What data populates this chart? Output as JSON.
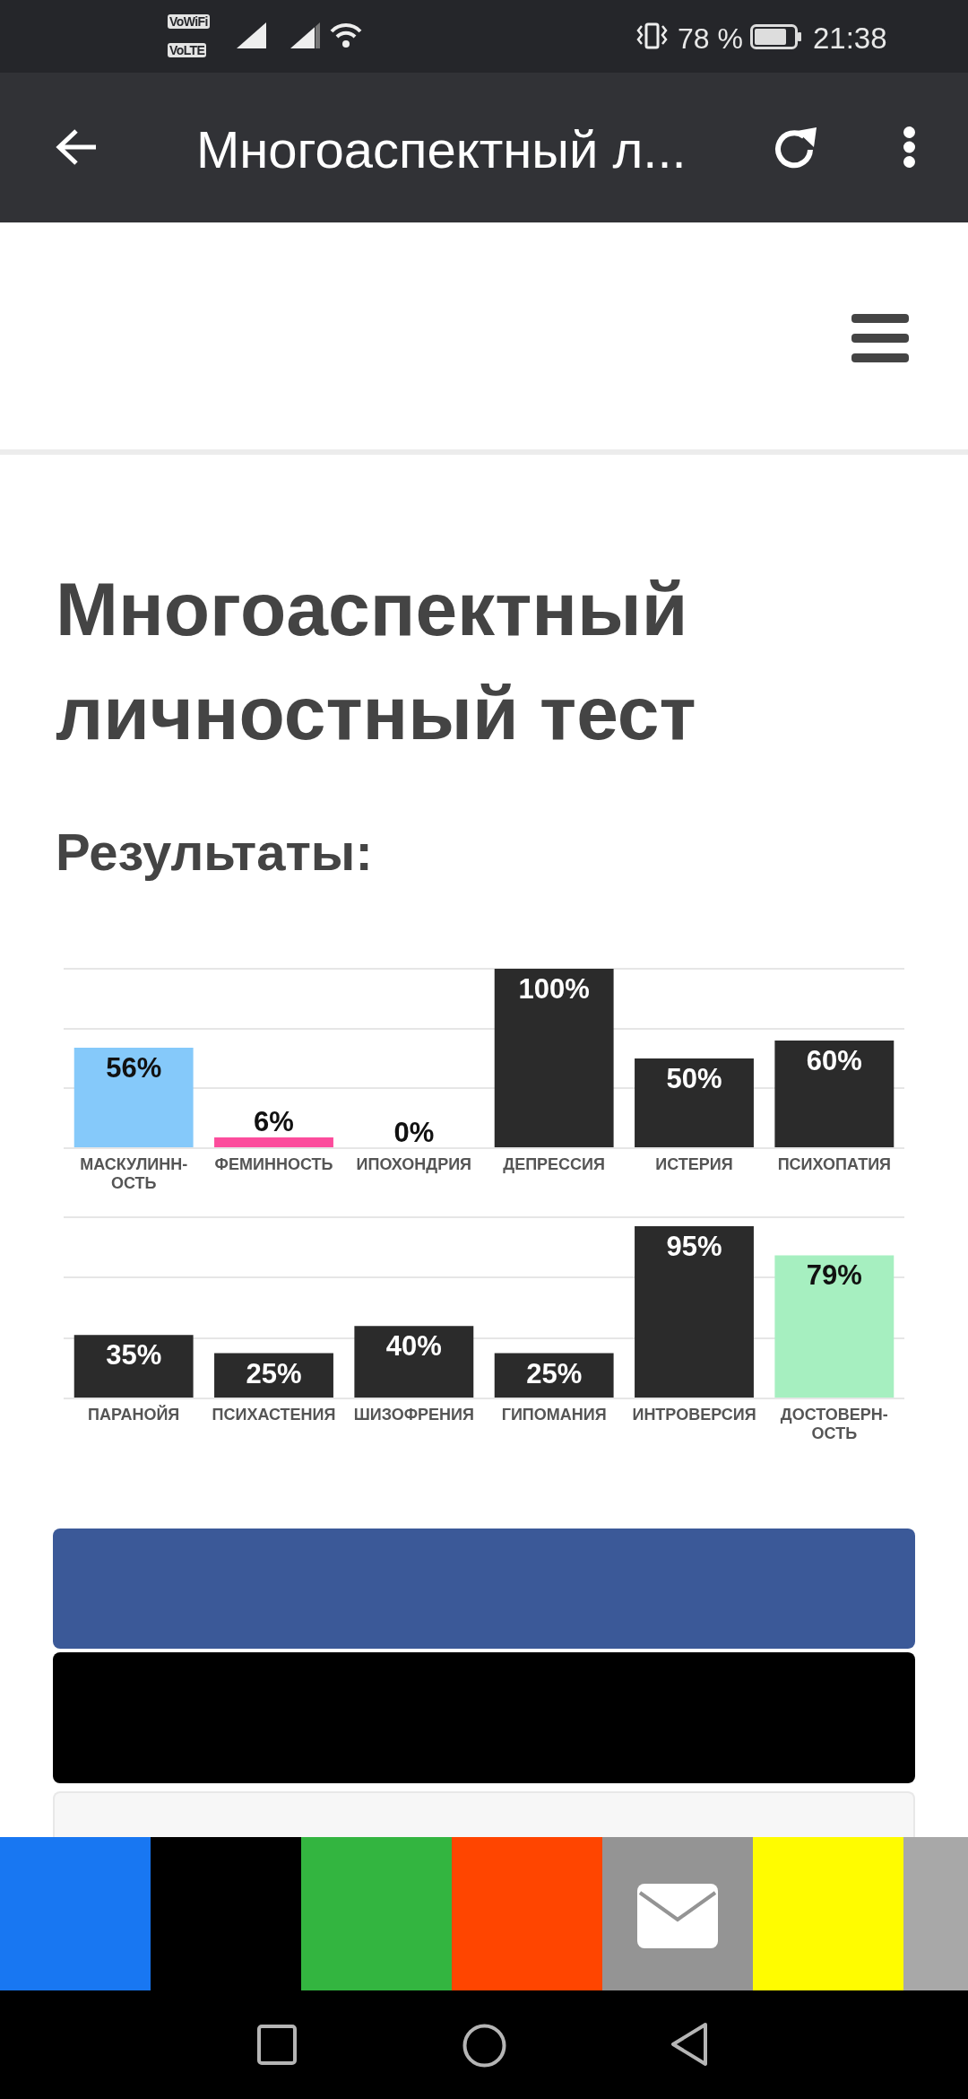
{
  "chart_data": [
    {
      "type": "bar",
      "title": "Многоаспектный личностный тест",
      "subtitle": "Результаты:",
      "annotations": [
        "VoWiFi",
        "VoLTE",
        "78 %",
        "21:38",
        "Многоаспектный л..."
      ],
      "categories": [
        "МАСКУЛИНН-ОСТЬ",
        "ФЕМИННОСТЬ",
        "ИПОХОНДРИЯ",
        "ДЕПРЕССИЯ",
        "ИСТЕРИЯ",
        "ПСИХОПАТИЯ"
      ],
      "values": [
        56,
        6,
        0,
        100,
        50,
        60
      ],
      "colors": [
        "#85c9fa",
        "#fc4c9c",
        "#2b2b2b",
        "#2b2b2b",
        "#2b2b2b",
        "#2b2b2b"
      ],
      "value_labels": [
        "56%",
        "6%",
        "0%",
        "100%",
        "50%",
        "60%"
      ],
      "ylim": [
        0,
        100
      ],
      "yticks": [
        {
          "value": 0,
          "label": null
        },
        {
          "value": 33.3,
          "label": null
        },
        {
          "value": 66.7,
          "label": null
        },
        {
          "value": 100,
          "label": null
        }
      ],
      "grid": "y",
      "tick_labels": "x"
    },
    {
      "type": "bar",
      "categories": [
        "ПАРАНОЙЯ",
        "ПСИХАСТЕНИЯ",
        "ШИЗОФРЕНИЯ",
        "ГИПОМАНИЯ",
        "ИНТРОВЕРСИЯ",
        "ДОСТОВЕРН-ОСТЬ"
      ],
      "values": [
        35,
        25,
        40,
        25,
        95,
        79
      ],
      "colors": [
        "#2b2b2b",
        "#2b2b2b",
        "#2b2b2b",
        "#2b2b2b",
        "#2b2b2b",
        "#a6efc0"
      ],
      "value_labels": [
        "35%",
        "25%",
        "40%",
        "25%",
        "95%",
        "79%"
      ],
      "ylim": [
        0,
        100
      ],
      "yticks": [
        {
          "value": 0,
          "label": null
        },
        {
          "value": 33.3,
          "label": null
        },
        {
          "value": 66.7,
          "label": null
        },
        {
          "value": 100,
          "label": null
        }
      ],
      "grid": "y",
      "tick_labels": "x"
    }
  ]
}
